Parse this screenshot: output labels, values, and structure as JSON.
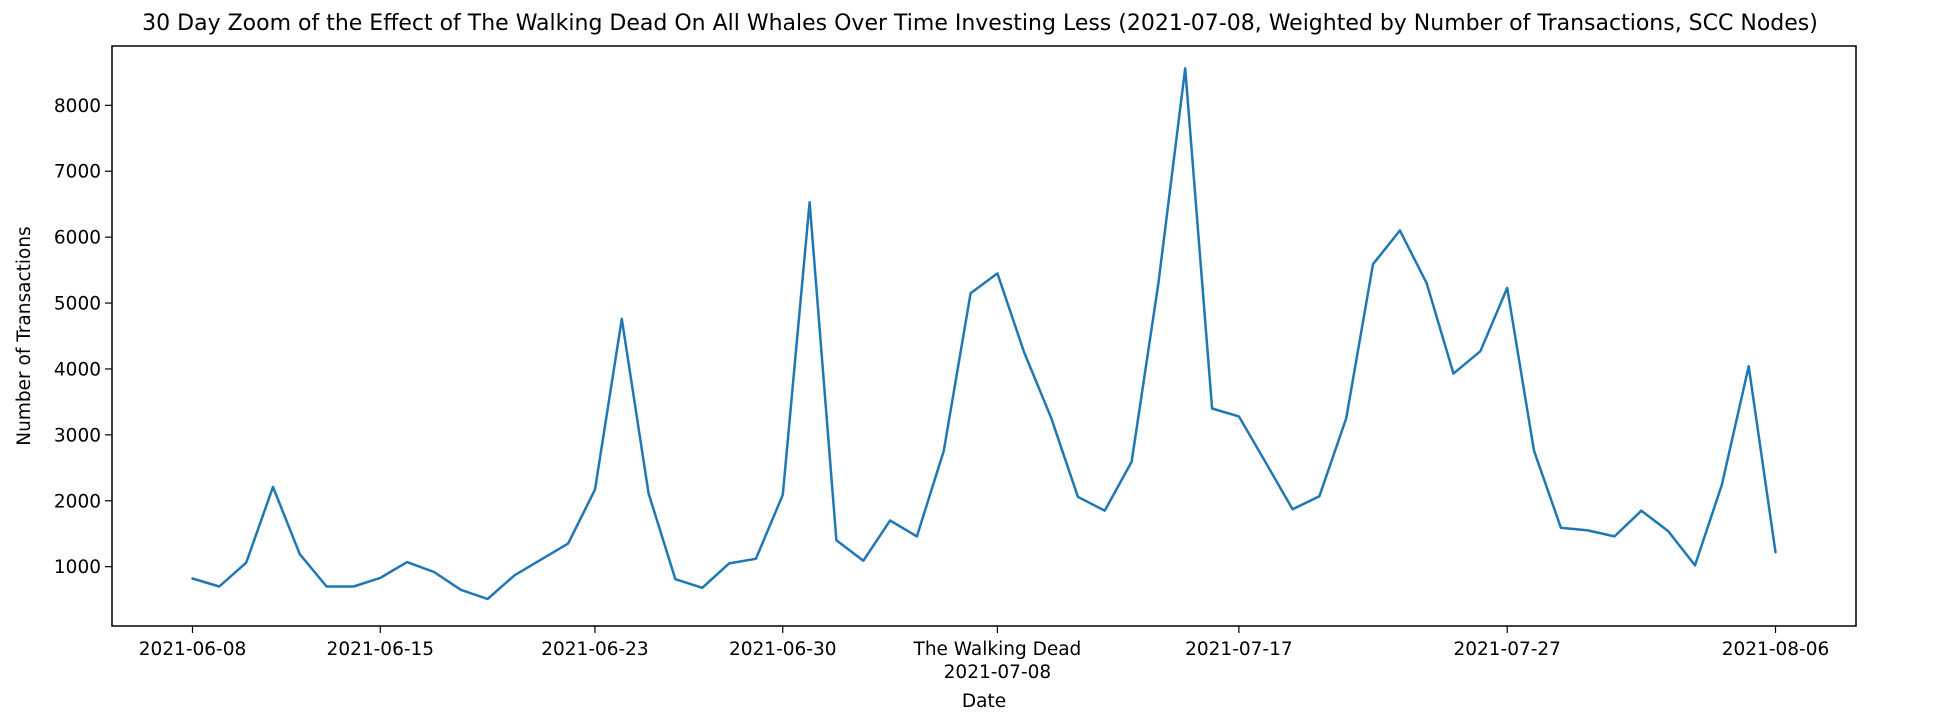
{
  "chart_data": {
    "type": "line",
    "title": "30 Day Zoom of the Effect of The Walking Dead On All Whales Over Time Investing Less (2021-07-08, Weighted by Number of Transactions, SCC Nodes)",
    "xlabel": "Date",
    "ylabel": "Number of Transactions",
    "x_ticks": [
      "2021-06-08",
      "2021-06-15",
      "2021-06-23",
      "2021-06-30",
      "2021-07-08",
      "2021-07-17",
      "2021-07-27",
      "2021-08-06"
    ],
    "event": {
      "date": "2021-07-08",
      "label": "The Walking Dead"
    },
    "y_ticks": [
      1000,
      2000,
      3000,
      4000,
      5000,
      6000,
      7000,
      8000
    ],
    "xlim": [
      "2021-06-05",
      "2021-08-09"
    ],
    "ylim": [
      100,
      8900
    ],
    "grid": false,
    "color": "#1f77b4",
    "x": [
      "2021-06-08",
      "2021-06-09",
      "2021-06-10",
      "2021-06-11",
      "2021-06-12",
      "2021-06-13",
      "2021-06-14",
      "2021-06-15",
      "2021-06-16",
      "2021-06-17",
      "2021-06-18",
      "2021-06-19",
      "2021-06-20",
      "2021-06-21",
      "2021-06-22",
      "2021-06-23",
      "2021-06-24",
      "2021-06-25",
      "2021-06-26",
      "2021-06-27",
      "2021-06-28",
      "2021-06-29",
      "2021-06-30",
      "2021-07-01",
      "2021-07-02",
      "2021-07-03",
      "2021-07-04",
      "2021-07-05",
      "2021-07-06",
      "2021-07-07",
      "2021-07-08",
      "2021-07-09",
      "2021-07-10",
      "2021-07-11",
      "2021-07-12",
      "2021-07-13",
      "2021-07-14",
      "2021-07-15",
      "2021-07-16",
      "2021-07-17",
      "2021-07-18",
      "2021-07-19",
      "2021-07-20",
      "2021-07-21",
      "2021-07-22",
      "2021-07-23",
      "2021-07-24",
      "2021-07-25",
      "2021-07-26",
      "2021-07-27",
      "2021-07-28",
      "2021-07-29",
      "2021-07-30",
      "2021-07-31",
      "2021-08-01",
      "2021-08-02",
      "2021-08-03",
      "2021-08-04",
      "2021-08-05",
      "2021-08-06"
    ],
    "y": [
      820,
      700,
      1060,
      2210,
      1190,
      700,
      700,
      830,
      1070,
      920,
      650,
      510,
      870,
      1110,
      1350,
      2170,
      4760,
      2110,
      810,
      680,
      1050,
      1120,
      2090,
      6530,
      1400,
      1090,
      1700,
      1460,
      2760,
      5150,
      5450,
      4250,
      3260,
      2060,
      1850,
      2590,
      5300,
      8560,
      3400,
      3280,
      2580,
      1870,
      2070,
      3250,
      5590,
      6100,
      5300,
      3930,
      4270,
      5230,
      2760,
      1590,
      1550,
      1460,
      1850,
      1540,
      1020,
      2240,
      4040,
      1220
    ]
  }
}
